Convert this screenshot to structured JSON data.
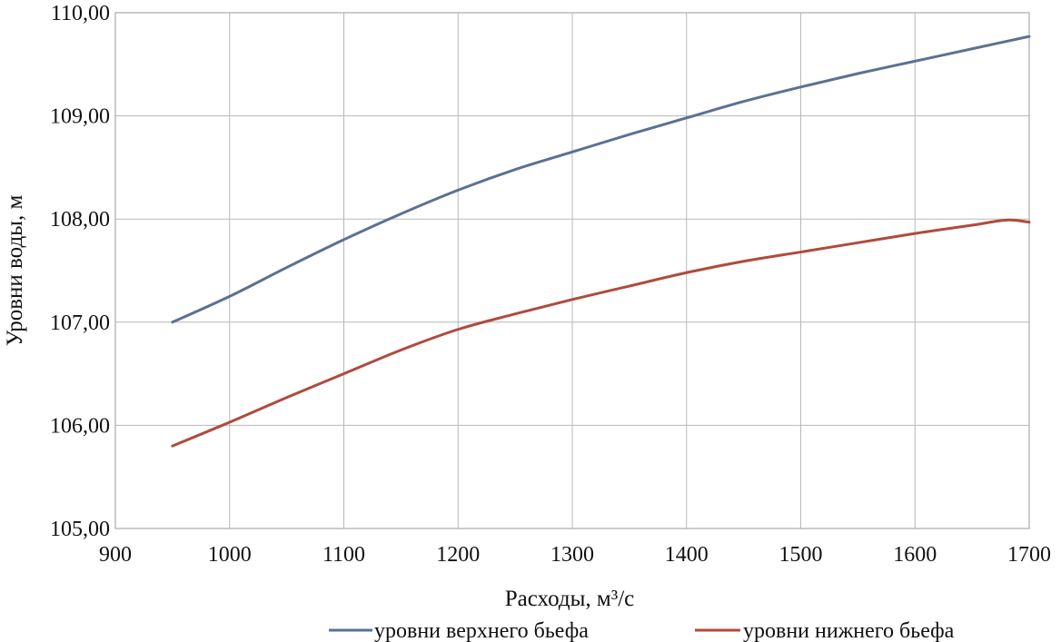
{
  "chart_data": {
    "type": "line",
    "title": "",
    "xlabel": "Расходы, м³/с",
    "ylabel": "Уровни воды, м",
    "xlim": [
      900,
      1700
    ],
    "ylim": [
      105,
      110
    ],
    "x_ticks": [
      900,
      1000,
      1100,
      1200,
      1300,
      1400,
      1500,
      1600,
      1700
    ],
    "x_tick_labels": [
      "900",
      "1000",
      "1100",
      "1200",
      "1300",
      "1400",
      "1500",
      "1600",
      "1700"
    ],
    "y_ticks": [
      105,
      106,
      107,
      108,
      109,
      110
    ],
    "y_tick_labels": [
      "105,00",
      "106,00",
      "107,00",
      "108,00",
      "109,00",
      "110,00"
    ],
    "grid": true,
    "legend_position": "bottom-right",
    "series": [
      {
        "name": "уровни верхнего бьефа",
        "color": "#5b7193",
        "x": [
          950,
          1000,
          1050,
          1100,
          1150,
          1200,
          1250,
          1300,
          1350,
          1400,
          1450,
          1500,
          1550,
          1600,
          1650,
          1700
        ],
        "y": [
          107.0,
          107.25,
          107.53,
          107.8,
          108.05,
          108.28,
          108.48,
          108.65,
          108.82,
          108.98,
          109.14,
          109.28,
          109.41,
          109.53,
          109.65,
          109.77
        ]
      },
      {
        "name": "уровни нижнего бьефа",
        "color": "#b04a3e",
        "x": [
          950,
          1000,
          1050,
          1100,
          1150,
          1200,
          1250,
          1300,
          1350,
          1400,
          1450,
          1500,
          1550,
          1600,
          1650,
          1680,
          1700
        ],
        "y": [
          105.8,
          106.03,
          106.27,
          106.5,
          106.73,
          106.93,
          107.08,
          107.22,
          107.35,
          107.48,
          107.59,
          107.68,
          107.77,
          107.86,
          107.94,
          107.99,
          107.97
        ]
      }
    ]
  }
}
